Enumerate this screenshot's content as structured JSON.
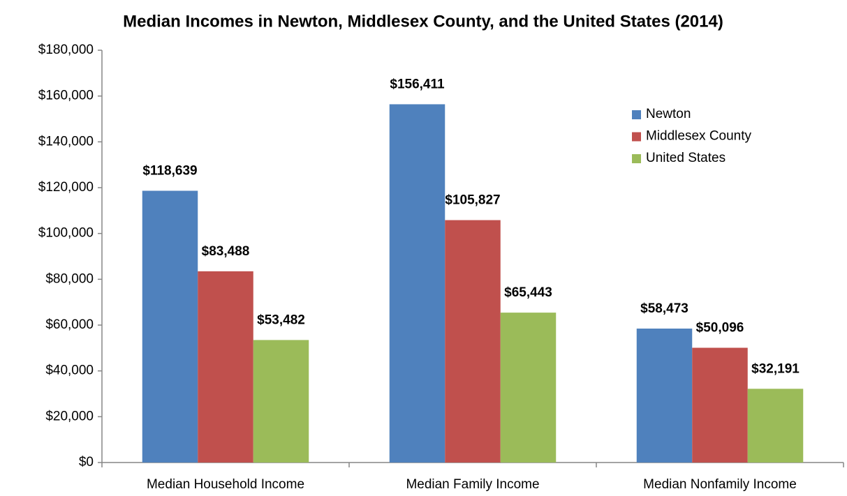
{
  "chart_data": {
    "type": "bar",
    "title": "Median Incomes in Newton, Middlesex County, and the United States (2014)",
    "categories": [
      "Median Household Income",
      "Median Family Income",
      "Median Nonfamily Income"
    ],
    "series": [
      {
        "name": "Newton",
        "color": "#4f81bd",
        "values": [
          118639,
          156411,
          58473
        ],
        "value_labels": [
          "$118,639",
          "$156,411",
          "$58,473"
        ]
      },
      {
        "name": "Middlesex County",
        "color": "#c0504d",
        "values": [
          83488,
          105827,
          50096
        ],
        "value_labels": [
          "$83,488",
          "$105,827",
          "$50,096"
        ]
      },
      {
        "name": "United States",
        "color": "#9bbb59",
        "values": [
          53482,
          65443,
          32191
        ],
        "value_labels": [
          "$53,482",
          "$65,443",
          "$32,191"
        ]
      }
    ],
    "ylim": [
      0,
      180000
    ],
    "yticks": [
      {
        "value": 0,
        "label": "$0"
      },
      {
        "value": 20000,
        "label": "$20,000"
      },
      {
        "value": 40000,
        "label": "$40,000"
      },
      {
        "value": 60000,
        "label": "$60,000"
      },
      {
        "value": 80000,
        "label": "$80,000"
      },
      {
        "value": 100000,
        "label": "$100,000"
      },
      {
        "value": 120000,
        "label": "$120,000"
      },
      {
        "value": 140000,
        "label": "$140,000"
      },
      {
        "value": 160000,
        "label": "$160,000"
      },
      {
        "value": 180000,
        "label": "$180,000"
      }
    ],
    "grid": false,
    "legend": "upper right"
  }
}
